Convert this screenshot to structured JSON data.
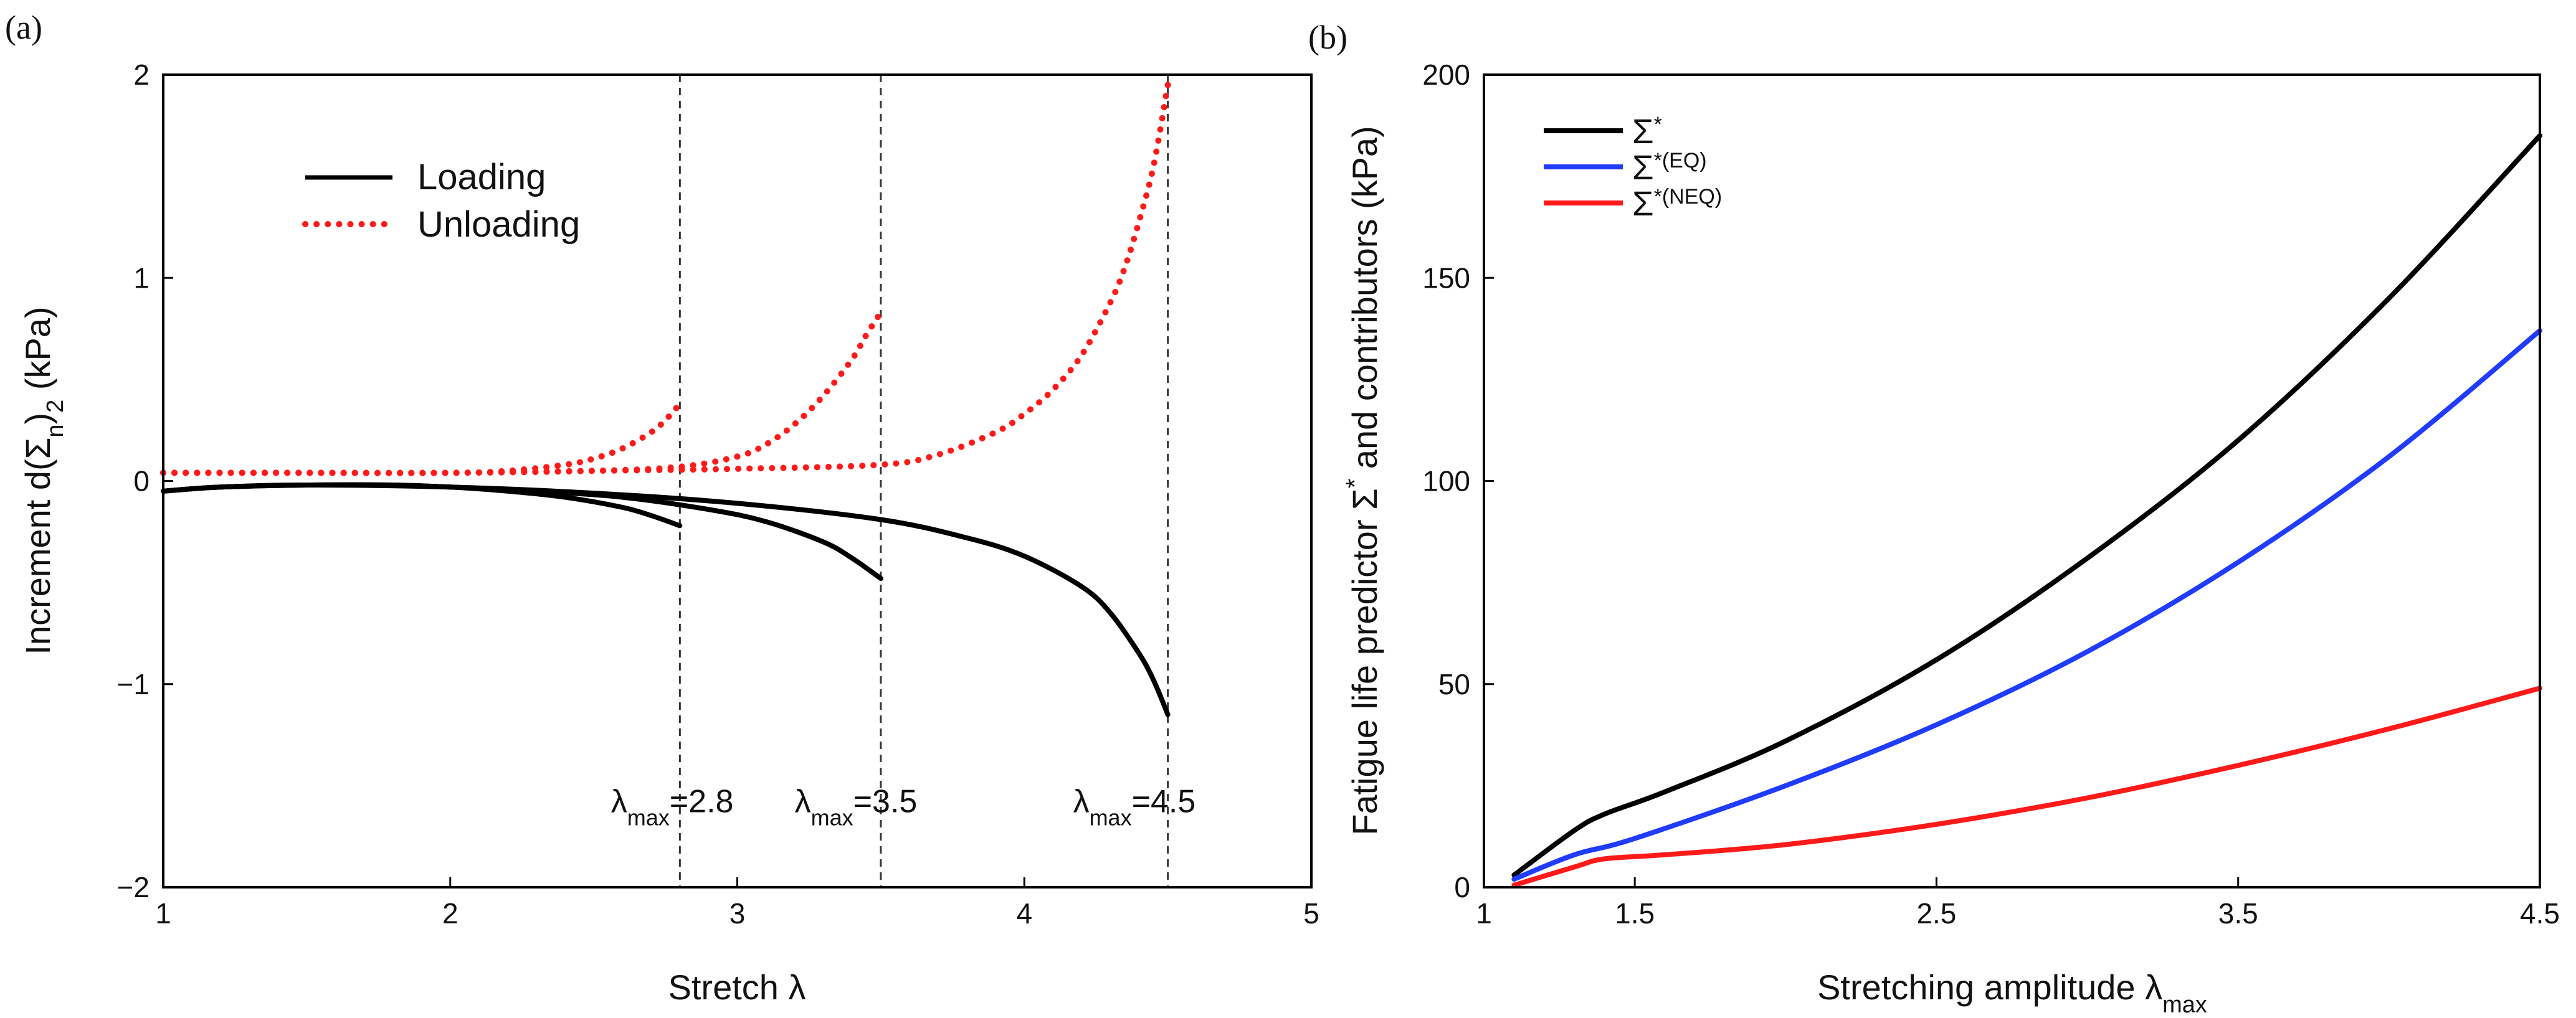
{
  "chart_data": [
    {
      "panel_label": "(a)",
      "type": "line",
      "xlabel": "Stretch λ",
      "ylabel": "Increment d(Σn)2 (kPa)",
      "xlim": [
        1,
        5
      ],
      "ylim": [
        -2,
        2
      ],
      "xticks": [
        1,
        2,
        3,
        4,
        5
      ],
      "yticks": [
        -2,
        -1,
        0,
        1,
        2
      ],
      "xtick_labels": [
        "1",
        "2",
        "3",
        "4",
        "5"
      ],
      "ytick_labels": [
        "−2",
        "−1",
        "0",
        "1",
        "2"
      ],
      "legend": {
        "position": "top-left",
        "entries": [
          "Loading",
          "Unloading"
        ]
      },
      "series": [
        {
          "name": "Loading",
          "style": "solid",
          "color": "#000000",
          "x": [
            1.0,
            1.2,
            1.5,
            1.8,
            2.0,
            2.2,
            2.4,
            2.6,
            2.7,
            2.8
          ],
          "y": [
            -0.05,
            -0.03,
            -0.02,
            -0.02,
            -0.03,
            -0.05,
            -0.08,
            -0.13,
            -0.17,
            -0.22
          ]
        },
        {
          "name": "Loading",
          "style": "solid",
          "color": "#000000",
          "x": [
            1.0,
            1.2,
            1.5,
            1.8,
            2.0,
            2.3,
            2.6,
            2.9,
            3.1,
            3.3,
            3.4,
            3.5
          ],
          "y": [
            -0.05,
            -0.03,
            -0.02,
            -0.02,
            -0.03,
            -0.05,
            -0.08,
            -0.14,
            -0.2,
            -0.3,
            -0.38,
            -0.48
          ]
        },
        {
          "name": "Loading",
          "style": "solid",
          "color": "#000000",
          "x": [
            1.0,
            1.2,
            1.5,
            2.0,
            2.5,
            3.0,
            3.5,
            3.8,
            4.0,
            4.2,
            4.3,
            4.4,
            4.45,
            4.5
          ],
          "y": [
            -0.05,
            -0.03,
            -0.02,
            -0.03,
            -0.06,
            -0.11,
            -0.19,
            -0.28,
            -0.37,
            -0.52,
            -0.65,
            -0.85,
            -0.98,
            -1.15
          ]
        },
        {
          "name": "Unloading",
          "style": "dotted",
          "color": "#ff1a1a",
          "x": [
            1.0,
            1.5,
            2.0,
            2.2,
            2.4,
            2.5,
            2.6,
            2.7,
            2.75,
            2.8
          ],
          "y": [
            0.04,
            0.04,
            0.04,
            0.05,
            0.08,
            0.11,
            0.16,
            0.24,
            0.3,
            0.38
          ]
        },
        {
          "name": "Unloading",
          "style": "dotted",
          "color": "#ff1a1a",
          "x": [
            1.0,
            1.5,
            2.0,
            2.5,
            2.8,
            3.0,
            3.1,
            3.2,
            3.3,
            3.4,
            3.45,
            3.5
          ],
          "y": [
            0.04,
            0.04,
            0.04,
            0.05,
            0.07,
            0.12,
            0.18,
            0.28,
            0.42,
            0.6,
            0.72,
            0.83
          ]
        },
        {
          "name": "Unloading",
          "style": "dotted",
          "color": "#ff1a1a",
          "x": [
            1.0,
            1.5,
            2.0,
            2.5,
            3.0,
            3.5,
            3.7,
            3.9,
            4.0,
            4.1,
            4.2,
            4.3,
            4.35,
            4.4,
            4.45,
            4.5
          ],
          "y": [
            0.04,
            0.04,
            0.04,
            0.05,
            0.06,
            0.08,
            0.13,
            0.24,
            0.33,
            0.45,
            0.62,
            0.88,
            1.05,
            1.28,
            1.55,
            1.95
          ]
        }
      ],
      "vlines": [
        2.8,
        3.5,
        4.5
      ],
      "annotations": [
        {
          "prefix": "λ",
          "sub": "max",
          "suffix": "=2.8",
          "x": 2.56,
          "y": -1.63
        },
        {
          "prefix": "λ",
          "sub": "max",
          "suffix": "=3.5",
          "x": 3.2,
          "y": -1.63
        },
        {
          "prefix": "λ",
          "sub": "max",
          "suffix": "=4.5",
          "x": 4.17,
          "y": -1.63
        }
      ]
    },
    {
      "panel_label": "(b)",
      "type": "line",
      "xlabel_main": "Stretching amplitude λ",
      "xlabel_sub": "max",
      "ylabel_main": "Fatigue life predictor Σ",
      "ylabel_sup": "*",
      "ylabel_rest": " and contributors (kPa)",
      "xlim": [
        1,
        4.5
      ],
      "ylim": [
        0,
        200
      ],
      "xticks": [
        1,
        1.5,
        2.5,
        3.5,
        4.5
      ],
      "yticks": [
        0,
        50,
        100,
        150,
        200
      ],
      "xtick_labels": [
        "1",
        "1.5",
        "2.5",
        "3.5",
        "4.5"
      ],
      "ytick_labels": [
        "0",
        "50",
        "100",
        "150",
        "200"
      ],
      "legend": {
        "position": "top-left",
        "entries": [
          {
            "base": "Σ",
            "sup": "*",
            "color": "#000000"
          },
          {
            "base": "Σ",
            "sup": "*(EQ)",
            "color": "#1f3cff"
          },
          {
            "base": "Σ",
            "sup": "*(NEQ)",
            "color": "#ff1a1a"
          }
        ]
      },
      "series": [
        {
          "color": "#000000",
          "x": [
            1.1,
            1.3,
            1.4,
            1.6,
            2.0,
            2.5,
            3.0,
            3.5,
            4.0,
            4.5
          ],
          "y": [
            3,
            14,
            18,
            23.5,
            36,
            56,
            81,
            110,
            145,
            185
          ]
        },
        {
          "color": "#1f3cff",
          "x": [
            1.1,
            1.3,
            1.5,
            2.0,
            2.5,
            3.0,
            3.5,
            4.0,
            4.5
          ],
          "y": [
            2,
            8,
            12,
            25,
            40,
            58,
            80,
            106,
            137
          ]
        },
        {
          "color": "#ff1a1a",
          "x": [
            1.1,
            1.3,
            1.4,
            1.6,
            2.0,
            2.5,
            3.0,
            3.5,
            4.0,
            4.5
          ],
          "y": [
            0.5,
            5,
            7,
            8,
            10.5,
            15.5,
            22,
            30,
            39,
            49
          ]
        }
      ]
    }
  ]
}
